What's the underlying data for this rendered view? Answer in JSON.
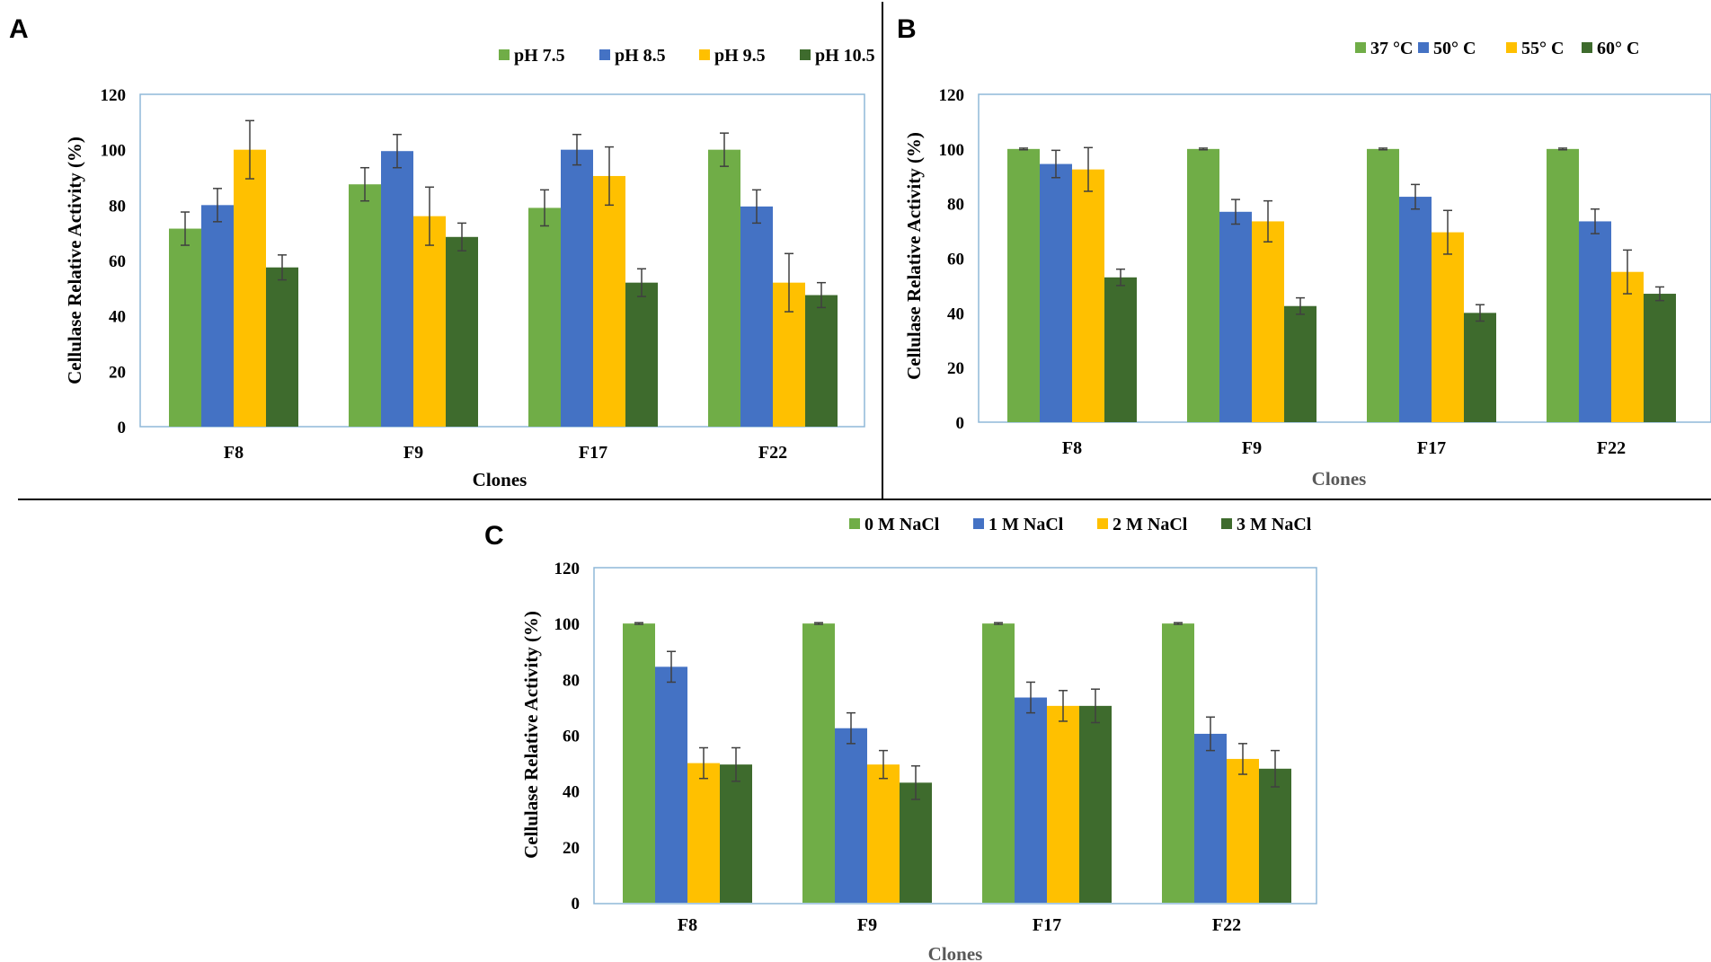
{
  "colors": {
    "green": "#70ad47",
    "blue": "#4472c4",
    "yellow": "#ffc000",
    "darkgreen": "#3e6b2d",
    "frame": "#8fb8d8",
    "errorbar": "#404040",
    "divider": "#000000"
  },
  "chart_data": [
    {
      "panel": "A",
      "type": "bar",
      "categories": [
        "F8",
        "F9",
        "F17",
        "F22"
      ],
      "series": [
        {
          "name": "pH 7.5",
          "color_key": "green",
          "values": [
            71.5,
            87.5,
            79,
            100
          ],
          "errors": [
            6,
            6,
            6.5,
            6
          ]
        },
        {
          "name": "pH 8.5",
          "color_key": "blue",
          "values": [
            80,
            99.5,
            100,
            79.5
          ],
          "errors": [
            6,
            6,
            5.5,
            6
          ]
        },
        {
          "name": "pH 9.5",
          "color_key": "yellow",
          "values": [
            100,
            76,
            90.5,
            52
          ],
          "errors": [
            10.5,
            10.5,
            10.5,
            10.5
          ]
        },
        {
          "name": "pH 10.5",
          "color_key": "darkgreen",
          "values": [
            57.5,
            68.5,
            52,
            47.5
          ],
          "errors": [
            4.5,
            5,
            5,
            4.5
          ]
        }
      ],
      "xlabel": "Clones",
      "ylabel": "Cellulase Relative Activity  (%)",
      "ylim": [
        0,
        120
      ],
      "yticks": [
        "0",
        "20",
        "40",
        "60",
        "80",
        "100",
        "120"
      ],
      "legend": "top-right"
    },
    {
      "panel": "B",
      "type": "bar",
      "categories": [
        "F8",
        "F9",
        "F17",
        "F22"
      ],
      "series": [
        {
          "name": "37 °C",
          "color_key": "green",
          "values": [
            100,
            100,
            100,
            100
          ],
          "errors": [
            0.3,
            0.3,
            0.3,
            0.3
          ]
        },
        {
          "name": "50° C",
          "color_key": "blue",
          "values": [
            94.5,
            77,
            82.5,
            73.5
          ],
          "errors": [
            5,
            4.5,
            4.5,
            4.5
          ]
        },
        {
          "name": "55° C",
          "color_key": "yellow",
          "values": [
            92.5,
            73.5,
            69.5,
            55
          ],
          "errors": [
            8,
            7.5,
            8,
            8
          ]
        },
        {
          "name": "60° C",
          "color_key": "darkgreen",
          "values": [
            53,
            42.5,
            40,
            47
          ],
          "errors": [
            3,
            3,
            3,
            2.5
          ]
        }
      ],
      "xlabel": "Clones",
      "ylabel": "Cellulase Relative Activity  (%)",
      "ylim": [
        0,
        120
      ],
      "yticks": [
        "0",
        "20",
        "40",
        "60",
        "80",
        "100",
        "120"
      ],
      "legend": "top-right"
    },
    {
      "panel": "C",
      "type": "bar",
      "categories": [
        "F8",
        "F9",
        "F17",
        "F22"
      ],
      "series": [
        {
          "name": "0  M NaCl",
          "color_key": "green",
          "values": [
            100,
            100,
            100,
            100
          ],
          "errors": [
            0.3,
            0.3,
            0.3,
            0.3
          ]
        },
        {
          "name": "1  M NaCl",
          "color_key": "blue",
          "values": [
            84.5,
            62.5,
            73.5,
            60.5
          ],
          "errors": [
            5.5,
            5.5,
            5.5,
            6
          ]
        },
        {
          "name": "2  M NaCl",
          "color_key": "yellow",
          "values": [
            50,
            49.5,
            70.5,
            51.5
          ],
          "errors": [
            5.5,
            5,
            5.5,
            5.5
          ]
        },
        {
          "name": "3  M NaCl",
          "color_key": "darkgreen",
          "values": [
            49.5,
            43,
            70.5,
            48
          ],
          "errors": [
            6,
            6,
            6,
            6.5
          ]
        }
      ],
      "xlabel": "Clones",
      "ylabel": "Cellulase Relative Activity  (%)",
      "ylim": [
        0,
        120
      ],
      "yticks": [
        "0",
        "20",
        "40",
        "60",
        "80",
        "100",
        "120"
      ],
      "legend": "top-center"
    }
  ]
}
